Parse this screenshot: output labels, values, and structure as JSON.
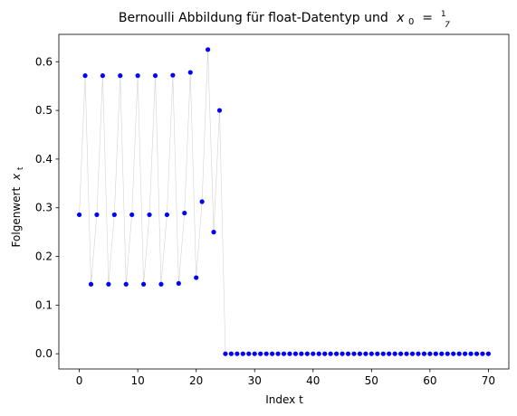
{
  "chart_data": {
    "type": "scatter",
    "title": "Bernoulli Abbildung für float-Datentyp und",
    "title_math": {
      "var": "x",
      "sub": "0",
      "eq": " = ",
      "num": "1",
      "den": "7"
    },
    "xlabel": "Index t",
    "ylabel": "Folgenwert",
    "ylabel_math": {
      "var": "x",
      "sub": "t"
    },
    "xlim": [
      -3.5,
      73.5
    ],
    "ylim": [
      -0.03125,
      0.65625
    ],
    "xticks": [
      0,
      10,
      20,
      30,
      40,
      50,
      60,
      70
    ],
    "yticks": [
      0.0,
      0.1,
      0.2,
      0.3,
      0.4,
      0.5,
      0.6
    ],
    "ytick_labels": [
      "0.0",
      "0.1",
      "0.2",
      "0.3",
      "0.4",
      "0.5",
      "0.6"
    ],
    "grid": false,
    "legend": "none",
    "marker_color": "#0000ff",
    "line_color": "#d3d3d3",
    "series": [
      {
        "x": [
          0,
          1,
          2,
          3,
          4,
          5,
          6,
          7,
          8,
          9,
          10,
          11,
          12,
          13,
          14,
          15,
          16,
          17,
          18,
          19,
          20,
          21,
          22,
          23,
          24,
          25,
          26,
          27,
          28,
          29,
          30,
          31,
          32,
          33,
          34,
          35,
          36,
          37,
          38,
          39,
          40,
          41,
          42,
          43,
          44,
          45,
          46,
          47,
          48,
          49,
          50,
          51,
          52,
          53,
          54,
          55,
          56,
          57,
          58,
          59,
          60,
          61,
          62,
          63,
          64,
          65,
          66,
          67,
          68,
          69,
          70
        ],
        "y": [
          0.2857,
          0.5714,
          0.1429,
          0.2857,
          0.5714,
          0.1429,
          0.2857,
          0.5714,
          0.1429,
          0.2857,
          0.5714,
          0.1429,
          0.2857,
          0.5714,
          0.1429,
          0.2857,
          0.5723,
          0.1445,
          0.2891,
          0.5781,
          0.1563,
          0.3125,
          0.625,
          0.25,
          0.5,
          0,
          0,
          0,
          0,
          0,
          0,
          0,
          0,
          0,
          0,
          0,
          0,
          0,
          0,
          0,
          0,
          0,
          0,
          0,
          0,
          0,
          0,
          0,
          0,
          0,
          0,
          0,
          0,
          0,
          0,
          0,
          0,
          0,
          0,
          0,
          0,
          0,
          0,
          0,
          0,
          0,
          0,
          0,
          0,
          0,
          0
        ]
      }
    ]
  }
}
